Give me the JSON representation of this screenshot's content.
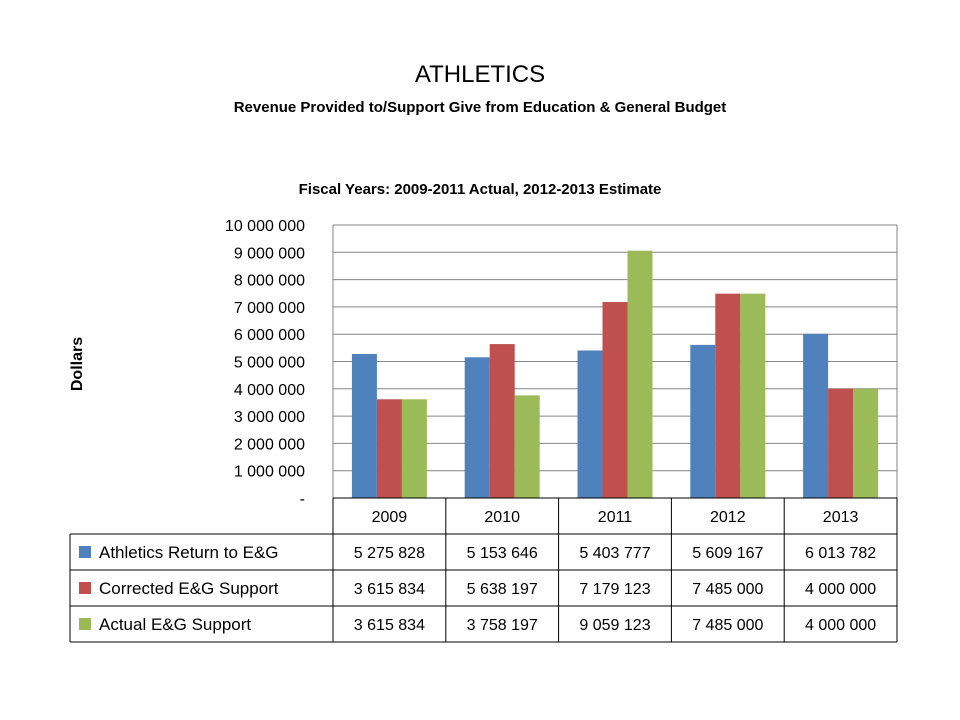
{
  "header": {
    "title": "ATHLETICS",
    "subtitle": "Revenue Provided to/Support Give from Education & General Budget"
  },
  "chart_data": {
    "type": "bar",
    "title": "Fiscal Years: 2009-2011 Actual, 2012-2013 Estimate",
    "xlabel": "",
    "ylabel": "Dollars",
    "ylim": [
      0,
      10000000
    ],
    "y_ticks": [
      0,
      1000000,
      2000000,
      3000000,
      4000000,
      5000000,
      6000000,
      7000000,
      8000000,
      9000000,
      10000000
    ],
    "y_tick_labels": [
      "-",
      "1 000 000",
      "2 000 000",
      "3 000 000",
      "4 000 000",
      "5 000 000",
      "6 000 000",
      "7 000 000",
      "8 000 000",
      "9 000 000",
      "10 000 000"
    ],
    "grid": true,
    "legend_position": "data-table",
    "categories": [
      "2009",
      "2010",
      "2011",
      "2012",
      "2013"
    ],
    "series": [
      {
        "name": "Athletics Return to E&G",
        "color": "#4F81BD",
        "values": [
          5275828,
          5153646,
          5403777,
          5609167,
          6013782
        ],
        "labels": [
          "5 275 828",
          "5 153 646",
          "5 403 777",
          "5 609 167",
          "6 013 782"
        ]
      },
      {
        "name": "Corrected E&G Support",
        "color": "#C0504D",
        "values": [
          3615834,
          5638197,
          7179123,
          7485000,
          4000000
        ],
        "labels": [
          "3 615 834",
          "5 638 197",
          "7 179 123",
          "7 485 000",
          "4 000 000"
        ]
      },
      {
        "name": "Actual E&G Support",
        "color": "#9BBB59",
        "values": [
          3615834,
          3758197,
          9059123,
          7485000,
          4000000
        ],
        "labels": [
          "3 615 834",
          "3 758 197",
          "9 059 123",
          "7 485 000",
          "4 000 000"
        ]
      }
    ]
  }
}
